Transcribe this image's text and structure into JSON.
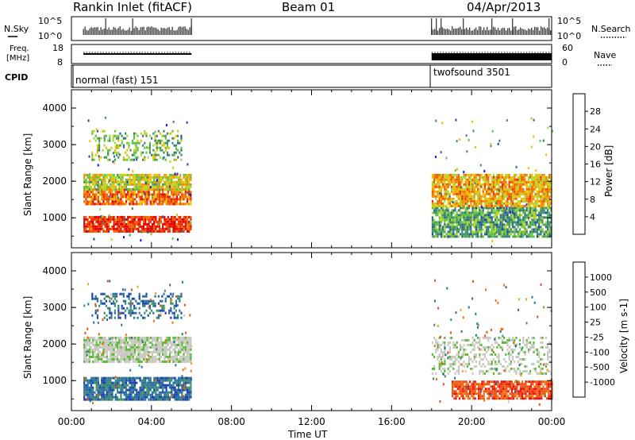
{
  "header": {
    "station": "Rankin Inlet (fitACF)",
    "beam": "Beam 01",
    "date": "04/Apr/2013"
  },
  "panels_top": {
    "nsky_label": "N.Sky",
    "nsky_ticks": [
      "10^5",
      "10^0"
    ],
    "nsearch_label": "N.Search",
    "freq_label_1": "Freq.",
    "freq_label_2": "[MHz]",
    "freq_ticks": [
      "18",
      "8"
    ],
    "nave_label": "Nave",
    "nave_ticks": [
      "60",
      "0"
    ],
    "cpid_label": "CPID",
    "cpid_segments": [
      "normal (fast) 151",
      "twofsound 3501"
    ]
  },
  "colors": {
    "power": [
      "#1010f0",
      "#2040b0",
      "#30708a",
      "#3f8f6a",
      "#5cc040",
      "#a8d830",
      "#f0c000",
      "#f09000",
      "#f06000",
      "#f03000",
      "#e00000"
    ],
    "velocity": [
      "#1a3fb0",
      "#2a6fa0",
      "#3c8f68",
      "#58b830",
      "#c8c8c0",
      "#c8c8c0",
      "#f0a020",
      "#f07010",
      "#f05010",
      "#e81010"
    ]
  },
  "chart_data": [
    {
      "type": "heatmap",
      "title": "Power",
      "ylabel": "Slant Range [km]",
      "xlabel": "",
      "colorbar_label": "Power [dB]",
      "colorbar_ticks": [
        "28",
        "24",
        "20",
        "16",
        "12",
        "8",
        "4"
      ],
      "x_ticks": [
        "00:00",
        "04:00",
        "08:00",
        "12:00",
        "16:00",
        "20:00",
        "00:00"
      ],
      "y_ticks": [
        "4000",
        "3000",
        "2000",
        "1000"
      ],
      "xlim_hours": [
        0,
        24
      ],
      "ylim_km": [
        180,
        4500
      ],
      "grid": false,
      "legend": "right colorbar",
      "data_segments_hours": [
        [
          0.6,
          6.0
        ],
        [
          18.0,
          24.0
        ]
      ],
      "bands": [
        {
          "t0": 0.6,
          "t1": 6.0,
          "r0": 600,
          "r1": 1050,
          "value_db": 28
        },
        {
          "t0": 0.6,
          "t1": 6.0,
          "r0": 1400,
          "r1": 1800,
          "value_db": 24
        },
        {
          "t0": 0.6,
          "t1": 6.0,
          "r0": 1800,
          "r1": 2200,
          "value_db": 16
        },
        {
          "t0": 1.0,
          "t1": 5.5,
          "r0": 2600,
          "r1": 3400,
          "value_db": 12
        },
        {
          "t0": 18.0,
          "t1": 24.0,
          "r0": 500,
          "r1": 1300,
          "value_db": 10
        },
        {
          "t0": 18.0,
          "t1": 24.0,
          "r0": 1300,
          "r1": 2200,
          "value_db": 20
        }
      ]
    },
    {
      "type": "heatmap",
      "title": "Velocity",
      "ylabel": "Slant Range [km]",
      "xlabel": "Time UT",
      "colorbar_label": "Velocity [m s-1]",
      "colorbar_ticks": [
        "1000",
        "500",
        "100",
        "25",
        "-25",
        "-100",
        "-500",
        "-1000"
      ],
      "x_ticks": [
        "00:00",
        "04:00",
        "08:00",
        "12:00",
        "16:00",
        "20:00",
        "00:00"
      ],
      "y_ticks": [
        "4000",
        "3000",
        "2000",
        "1000"
      ],
      "xlim_hours": [
        0,
        24
      ],
      "ylim_km": [
        180,
        4500
      ],
      "grid": false,
      "legend": "right colorbar",
      "data_segments_hours": [
        [
          0.6,
          6.0
        ],
        [
          18.0,
          24.0
        ]
      ],
      "bands": [
        {
          "t0": 0.6,
          "t1": 6.0,
          "r0": 500,
          "r1": 1100,
          "value_ms": 200
        },
        {
          "t0": 0.6,
          "t1": 6.0,
          "r0": 1500,
          "r1": 2200,
          "value_ms": 0
        },
        {
          "t0": 1.0,
          "t1": 5.5,
          "r0": 2700,
          "r1": 3400,
          "value_ms": 300
        },
        {
          "t0": 18.0,
          "t1": 24.0,
          "r0": 1200,
          "r1": 2200,
          "value_ms": 0
        },
        {
          "t0": 19.0,
          "t1": 24.0,
          "r0": 500,
          "r1": 1000,
          "value_ms": -300
        }
      ]
    }
  ]
}
